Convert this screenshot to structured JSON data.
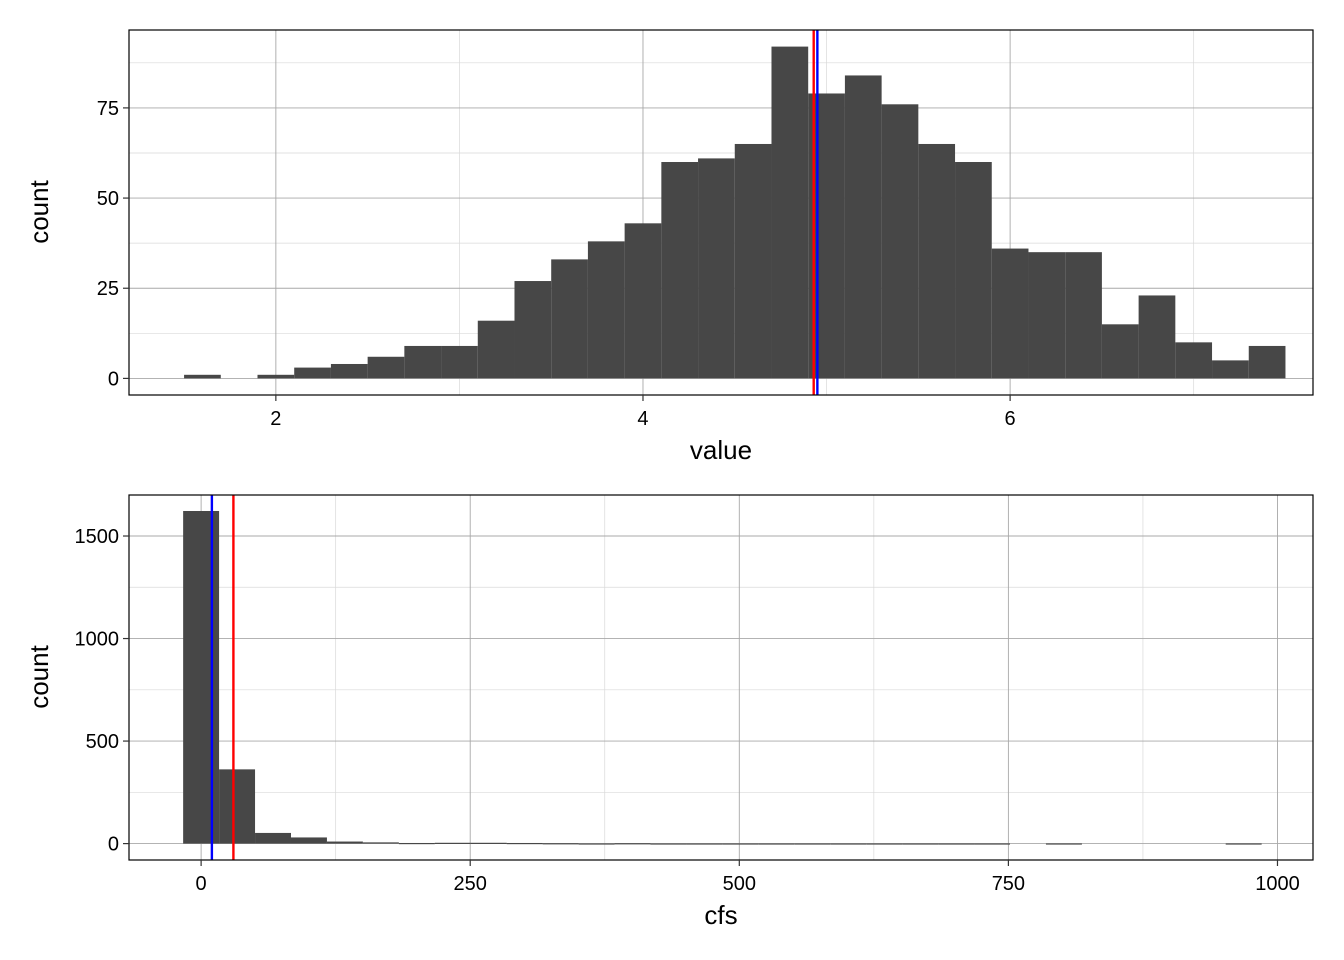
{
  "chart_data": [
    {
      "type": "bar",
      "xlabel": "value",
      "ylabel": "count",
      "xlim": [
        1.2,
        7.65
      ],
      "ylim": [
        -4.6,
        96.6
      ],
      "x_ticks": [
        {
          "value": 2,
          "label": "2"
        },
        {
          "value": 4,
          "label": "4"
        },
        {
          "value": 6,
          "label": "6"
        }
      ],
      "y_ticks": [
        {
          "value": 0,
          "label": "0"
        },
        {
          "value": 25,
          "label": "25"
        },
        {
          "value": 50,
          "label": "50"
        },
        {
          "value": 75,
          "label": "75"
        }
      ],
      "grid": true,
      "bin_width": 0.2,
      "bins": [
        {
          "x0": 1.5,
          "x1": 1.7,
          "count": 1
        },
        {
          "x0": 1.7,
          "x1": 1.9,
          "count": 0
        },
        {
          "x0": 1.9,
          "x1": 2.1,
          "count": 1
        },
        {
          "x0": 2.1,
          "x1": 2.3,
          "count": 3
        },
        {
          "x0": 2.3,
          "x1": 2.5,
          "count": 4
        },
        {
          "x0": 2.5,
          "x1": 2.7,
          "count": 6
        },
        {
          "x0": 2.7,
          "x1": 2.9,
          "count": 9
        },
        {
          "x0": 2.9,
          "x1": 3.1,
          "count": 9
        },
        {
          "x0": 3.1,
          "x1": 3.3,
          "count": 16
        },
        {
          "x0": 3.3,
          "x1": 3.5,
          "count": 27
        },
        {
          "x0": 3.5,
          "x1": 3.7,
          "count": 33
        },
        {
          "x0": 3.7,
          "x1": 3.9,
          "count": 38
        },
        {
          "x0": 3.9,
          "x1": 4.1,
          "count": 43
        },
        {
          "x0": 4.1,
          "x1": 4.3,
          "count": 60
        },
        {
          "x0": 4.3,
          "x1": 4.5,
          "count": 61
        },
        {
          "x0": 4.5,
          "x1": 4.7,
          "count": 65
        },
        {
          "x0": 4.7,
          "x1": 4.9,
          "count": 92
        },
        {
          "x0": 4.9,
          "x1": 5.1,
          "count": 79
        },
        {
          "x0": 5.1,
          "x1": 5.3,
          "count": 84
        },
        {
          "x0": 5.3,
          "x1": 5.5,
          "count": 76
        },
        {
          "x0": 5.5,
          "x1": 5.7,
          "count": 65
        },
        {
          "x0": 5.7,
          "x1": 5.9,
          "count": 60
        },
        {
          "x0": 5.9,
          "x1": 6.1,
          "count": 36
        },
        {
          "x0": 6.1,
          "x1": 6.3,
          "count": 35
        },
        {
          "x0": 6.3,
          "x1": 6.5,
          "count": 35
        },
        {
          "x0": 6.5,
          "x1": 6.7,
          "count": 15
        },
        {
          "x0": 6.7,
          "x1": 6.9,
          "count": 23
        },
        {
          "x0": 6.9,
          "x1": 7.1,
          "count": 10
        },
        {
          "x0": 7.1,
          "x1": 7.3,
          "count": 5
        },
        {
          "x0": 7.3,
          "x1": 7.5,
          "count": 9
        }
      ],
      "bar_color": "#474747",
      "vlines": [
        {
          "x": 4.93,
          "color": "#ff0000"
        },
        {
          "x": 4.95,
          "color": "#0000ff"
        }
      ]
    },
    {
      "type": "bar",
      "xlabel": "cfs",
      "ylabel": "count",
      "xlim": [
        -67,
        1033
      ],
      "ylim": [
        -80,
        1700
      ],
      "x_ticks": [
        {
          "value": 0,
          "label": "0"
        },
        {
          "value": 250,
          "label": "250"
        },
        {
          "value": 500,
          "label": "500"
        },
        {
          "value": 750,
          "label": "750"
        },
        {
          "value": 1000,
          "label": "1000"
        }
      ],
      "y_ticks": [
        {
          "value": 0,
          "label": "0"
        },
        {
          "value": 500,
          "label": "500"
        },
        {
          "value": 1000,
          "label": "1000"
        },
        {
          "value": 1500,
          "label": "1500"
        }
      ],
      "grid": true,
      "bin_width": 33.4,
      "bins": [
        {
          "x0": -16.7,
          "x1": 16.7,
          "count": 1622
        },
        {
          "x0": 16.7,
          "x1": 50.1,
          "count": 362
        },
        {
          "x0": 50.1,
          "x1": 83.5,
          "count": 52
        },
        {
          "x0": 83.5,
          "x1": 116.9,
          "count": 30
        },
        {
          "x0": 116.9,
          "x1": 150.3,
          "count": 10
        },
        {
          "x0": 150.3,
          "x1": 183.7,
          "count": 6
        },
        {
          "x0": 183.7,
          "x1": 217.1,
          "count": 3
        },
        {
          "x0": 217.1,
          "x1": 250.5,
          "count": 4
        },
        {
          "x0": 250.5,
          "x1": 283.9,
          "count": 4
        },
        {
          "x0": 283.9,
          "x1": 317.3,
          "count": 3
        },
        {
          "x0": 317.3,
          "x1": 350.7,
          "count": 2
        },
        {
          "x0": 350.7,
          "x1": 384.1,
          "count": 1
        },
        {
          "x0": 384.1,
          "x1": 417.5,
          "count": 2
        },
        {
          "x0": 417.5,
          "x1": 450.9,
          "count": 1
        },
        {
          "x0": 450.9,
          "x1": 484.3,
          "count": 1
        },
        {
          "x0": 484.3,
          "x1": 517.7,
          "count": 1
        },
        {
          "x0": 517.7,
          "x1": 551.1,
          "count": 1
        },
        {
          "x0": 551.1,
          "x1": 584.5,
          "count": 1
        },
        {
          "x0": 584.5,
          "x1": 617.9,
          "count": 1
        },
        {
          "x0": 617.9,
          "x1": 651.3,
          "count": 1
        },
        {
          "x0": 651.3,
          "x1": 684.7,
          "count": 1
        },
        {
          "x0": 684.7,
          "x1": 718.1,
          "count": 1
        },
        {
          "x0": 718.1,
          "x1": 751.5,
          "count": 1
        },
        {
          "x0": 751.5,
          "x1": 784.9,
          "count": 0
        },
        {
          "x0": 784.9,
          "x1": 818.3,
          "count": 1
        },
        {
          "x0": 818.3,
          "x1": 851.7,
          "count": 0
        },
        {
          "x0": 851.7,
          "x1": 885.1,
          "count": 0
        },
        {
          "x0": 885.1,
          "x1": 918.5,
          "count": 0
        },
        {
          "x0": 918.5,
          "x1": 951.9,
          "count": 0
        },
        {
          "x0": 951.9,
          "x1": 985.3,
          "count": 1
        }
      ],
      "bar_color": "#474747",
      "vlines": [
        {
          "x": 10,
          "color": "#0000ff"
        },
        {
          "x": 30,
          "color": "#ff0000"
        }
      ]
    }
  ]
}
